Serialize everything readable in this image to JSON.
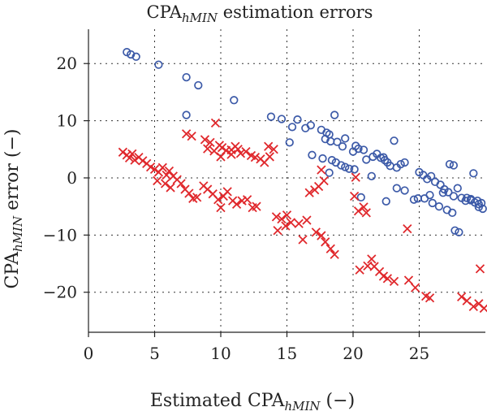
{
  "chart_data": {
    "type": "scatter",
    "title": {
      "main": "CPA",
      "sub": "hMIN",
      "rest": " estimation errors"
    },
    "xlabel": {
      "main": "Estimated CPA",
      "sub": "hMIN",
      "rest": " (−)"
    },
    "ylabel": {
      "main": "CPA",
      "sub": "hMIN",
      "rest": " error (−)"
    },
    "xlim": [
      0,
      30
    ],
    "ylim": [
      -27,
      26
    ],
    "xticks": [
      0,
      5,
      10,
      15,
      20,
      25
    ],
    "yticks": [
      -20,
      -10,
      0,
      10,
      20
    ],
    "xtick_labels": [
      "0",
      "5",
      "10",
      "15",
      "20",
      "25"
    ],
    "ytick_labels": [
      "−20",
      "−10",
      "0",
      "10",
      "20"
    ],
    "grid": true,
    "series": [
      {
        "marker": "circle",
        "color": "#3c5aa8",
        "points": [
          [
            2.9,
            22
          ],
          [
            3.2,
            21.6
          ],
          [
            3.6,
            21.2
          ],
          [
            5.3,
            19.8
          ],
          [
            7.4,
            17.6
          ],
          [
            8.3,
            16.2
          ],
          [
            7.4,
            11
          ],
          [
            11.0,
            13.6
          ],
          [
            13.8,
            10.7
          ],
          [
            14.6,
            10.3
          ],
          [
            15.2,
            6.2
          ],
          [
            15.8,
            10.2
          ],
          [
            15.4,
            8.9
          ],
          [
            16.4,
            8.7
          ],
          [
            16.8,
            9.2
          ],
          [
            17.6,
            8.4
          ],
          [
            18.0,
            7.9
          ],
          [
            18.2,
            7.6
          ],
          [
            17.9,
            6.8
          ],
          [
            18.3,
            6.4
          ],
          [
            18.8,
            6.3
          ],
          [
            19.4,
            6.9
          ],
          [
            19.2,
            5.5
          ],
          [
            18.6,
            11.0
          ],
          [
            16.9,
            4.0
          ],
          [
            17.7,
            3.4
          ],
          [
            18.4,
            3.1
          ],
          [
            18.7,
            2.7
          ],
          [
            19.1,
            2.2
          ],
          [
            19.4,
            1.9
          ],
          [
            19.7,
            1.6
          ],
          [
            20.1,
            1.5
          ],
          [
            20.0,
            4.6
          ],
          [
            20.4,
            5.1
          ],
          [
            20.8,
            4.9
          ],
          [
            20.2,
            5.6
          ],
          [
            21.0,
            3.2
          ],
          [
            21.5,
            3.7
          ],
          [
            21.8,
            4.2
          ],
          [
            22.1,
            3.5
          ],
          [
            22.4,
            3.1
          ],
          [
            22.6,
            2.7
          ],
          [
            22.3,
            3.6
          ],
          [
            22.8,
            2.1
          ],
          [
            23.3,
            1.8
          ],
          [
            23.6,
            2.4
          ],
          [
            23.9,
            2.7
          ],
          [
            23.1,
            6.5
          ],
          [
            21.4,
            0.3
          ],
          [
            23.3,
            -1.8
          ],
          [
            23.9,
            -2.2
          ],
          [
            22.5,
            -4.1
          ],
          [
            25.0,
            1.0
          ],
          [
            25.3,
            0.5
          ],
          [
            25.6,
            -0.2
          ],
          [
            25.9,
            0.3
          ],
          [
            26.2,
            -0.7
          ],
          [
            26.6,
            -1.2
          ],
          [
            26.9,
            -2.0
          ],
          [
            27.2,
            -2.5
          ],
          [
            27.6,
            -3.2
          ],
          [
            27.9,
            -1.8
          ],
          [
            27.3,
            2.4
          ],
          [
            27.6,
            2.2
          ],
          [
            28.6,
            -3.5
          ],
          [
            28.9,
            -3.9
          ],
          [
            29.2,
            -4.3
          ],
          [
            29.5,
            -4.6
          ],
          [
            29.8,
            -5.4
          ],
          [
            29.5,
            -5.1
          ],
          [
            29.1,
            0.8
          ],
          [
            25.4,
            -3.6
          ],
          [
            26.0,
            -4.4
          ],
          [
            26.5,
            -5.0
          ],
          [
            27.1,
            -5.6
          ],
          [
            27.5,
            -6.1
          ],
          [
            27.7,
            -9.2
          ],
          [
            28.0,
            -9.5
          ],
          [
            28.2,
            -3.5
          ],
          [
            28.5,
            -4.0
          ],
          [
            26.8,
            -2.6
          ],
          [
            25.8,
            -3.0
          ],
          [
            24.6,
            -3.8
          ],
          [
            24.9,
            -3.6
          ],
          [
            28.9,
            -3.7
          ],
          [
            29.4,
            -4.0
          ],
          [
            29.7,
            -4.4
          ],
          [
            20.6,
            -3.4
          ],
          [
            18.2,
            0.9
          ]
        ]
      },
      {
        "marker": "x",
        "color": "#e0282c",
        "points": [
          [
            2.6,
            4.5
          ],
          [
            2.9,
            4.0
          ],
          [
            3.1,
            3.5
          ],
          [
            3.3,
            4.2
          ],
          [
            3.5,
            3.1
          ],
          [
            3.8,
            3.6
          ],
          [
            4.1,
            3.0
          ],
          [
            4.4,
            2.5
          ],
          [
            4.7,
            1.9
          ],
          [
            5.0,
            1.5
          ],
          [
            5.3,
            1.0
          ],
          [
            5.6,
            1.8
          ],
          [
            5.9,
            0.5
          ],
          [
            6.1,
            1.2
          ],
          [
            6.4,
            0.3
          ],
          [
            6.7,
            -0.3
          ],
          [
            5.2,
            -0.5
          ],
          [
            5.8,
            -1.0
          ],
          [
            6.2,
            -1.7
          ],
          [
            7.0,
            -1.0
          ],
          [
            7.3,
            -2.0
          ],
          [
            7.6,
            -2.7
          ],
          [
            7.9,
            -3.6
          ],
          [
            8.2,
            -3.4
          ],
          [
            8.7,
            -1.4
          ],
          [
            9.0,
            -2.0
          ],
          [
            9.4,
            -2.8
          ],
          [
            9.8,
            -3.8
          ],
          [
            10.0,
            -5.2
          ],
          [
            10.2,
            -3.2
          ],
          [
            10.5,
            -2.4
          ],
          [
            10.9,
            -4.0
          ],
          [
            11.2,
            -4.6
          ],
          [
            11.6,
            -4.0
          ],
          [
            12.0,
            -3.8
          ],
          [
            12.4,
            -5.2
          ],
          [
            12.7,
            -5.0
          ],
          [
            7.4,
            7.7
          ],
          [
            7.8,
            7.3
          ],
          [
            8.8,
            6.7
          ],
          [
            9.2,
            6.2
          ],
          [
            9.6,
            9.6
          ],
          [
            9.9,
            5.7
          ],
          [
            10.1,
            5.3
          ],
          [
            10.4,
            4.8
          ],
          [
            10.8,
            4.9
          ],
          [
            11.1,
            5.5
          ],
          [
            11.5,
            4.3
          ],
          [
            11.9,
            4.6
          ],
          [
            12.3,
            3.9
          ],
          [
            12.6,
            3.6
          ],
          [
            13.0,
            3.3
          ],
          [
            13.3,
            2.7
          ],
          [
            13.7,
            3.7
          ],
          [
            14.0,
            5.0
          ],
          [
            9.0,
            5.1
          ],
          [
            9.5,
            4.7
          ],
          [
            10.0,
            3.7
          ],
          [
            10.8,
            4.1
          ],
          [
            11.3,
            5.0
          ],
          [
            13.6,
            5.5
          ],
          [
            14.2,
            -6.8
          ],
          [
            14.6,
            -7.2
          ],
          [
            15.0,
            -6.5
          ],
          [
            15.3,
            -7.8
          ],
          [
            14.3,
            -9.2
          ],
          [
            14.9,
            -8.4
          ],
          [
            15.9,
            -8.0
          ],
          [
            16.2,
            -10.8
          ],
          [
            16.5,
            -7.4
          ],
          [
            17.2,
            -9.5
          ],
          [
            17.6,
            -10.1
          ],
          [
            17.9,
            -11.2
          ],
          [
            18.3,
            -12.4
          ],
          [
            18.6,
            -13.4
          ],
          [
            16.7,
            -2.6
          ],
          [
            17.1,
            -2.1
          ],
          [
            17.4,
            -1.5
          ],
          [
            17.8,
            -0.5
          ],
          [
            17.6,
            1.4
          ],
          [
            20.1,
            -3.2
          ],
          [
            20.4,
            -5.8
          ],
          [
            20.8,
            -5.1
          ],
          [
            21.0,
            -6.1
          ],
          [
            21.4,
            -14.2
          ],
          [
            21.6,
            -15.5
          ],
          [
            20.5,
            -16.1
          ],
          [
            21.1,
            -15.4
          ],
          [
            22.0,
            -16.4
          ],
          [
            22.3,
            -17.2
          ],
          [
            22.6,
            -17.6
          ],
          [
            23.1,
            -18.1
          ],
          [
            20.2,
            0.1
          ],
          [
            24.1,
            -8.9
          ],
          [
            24.2,
            -17.9
          ],
          [
            24.7,
            -19.2
          ],
          [
            25.5,
            -20.7
          ],
          [
            25.8,
            -21.0
          ],
          [
            28.2,
            -20.8
          ],
          [
            28.6,
            -21.5
          ],
          [
            29.1,
            -22.5
          ],
          [
            29.5,
            -22.0
          ],
          [
            29.9,
            -22.8
          ],
          [
            29.6,
            -15.9
          ]
        ]
      }
    ]
  }
}
